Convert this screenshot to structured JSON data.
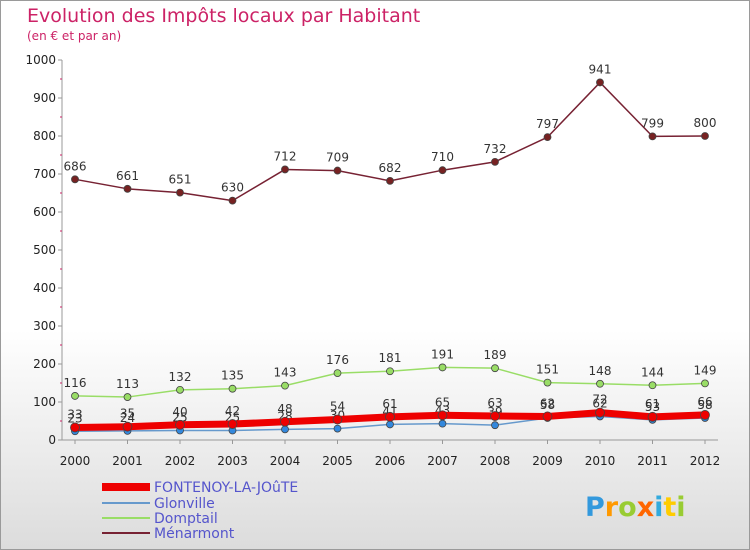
{
  "chart_data": {
    "type": "line",
    "title": "Evolution des Impôts locaux par Habitant",
    "subtitle": "(en € et par an)",
    "xlabel": "",
    "ylabel": "",
    "x": [
      "2000",
      "2001",
      "2002",
      "2003",
      "2004",
      "2005",
      "2006",
      "2007",
      "2008",
      "2009",
      "2010",
      "2011",
      "2012"
    ],
    "ylim": [
      0,
      1000
    ],
    "yticks": [
      "0",
      "100",
      "200",
      "300",
      "400",
      "500",
      "600",
      "700",
      "800",
      "900",
      "1000"
    ],
    "grid": false,
    "legend_position": "bottom-left",
    "series": [
      {
        "name": "FONTENOY-LA-JOûTE",
        "color": "#ee0000",
        "values": [
          33,
          35,
          40,
          42,
          48,
          54,
          61,
          65,
          63,
          62,
          72,
          61,
          66
        ]
      },
      {
        "name": "Glonville",
        "color": "#6699cc",
        "values": [
          23,
          24,
          25,
          25,
          28,
          30,
          41,
          43,
          39,
          58,
          62,
          53,
          58
        ]
      },
      {
        "name": "Domptail",
        "color": "#99dd66",
        "values": [
          116,
          113,
          132,
          135,
          143,
          176,
          181,
          191,
          189,
          151,
          148,
          144,
          149
        ]
      },
      {
        "name": "Ménarmont",
        "color": "#772233",
        "values": [
          686,
          661,
          651,
          630,
          712,
          709,
          682,
          710,
          732,
          797,
          941,
          799,
          800
        ]
      }
    ]
  },
  "brand": {
    "name": "Proxiti",
    "letters": [
      "P",
      "r",
      "o",
      "x",
      "i",
      "t",
      "i"
    ],
    "colors": [
      "#3399dd",
      "#ff9900",
      "#99cc33",
      "#ff6600",
      "#33aadd",
      "#ffcc00",
      "#99cc33"
    ]
  }
}
